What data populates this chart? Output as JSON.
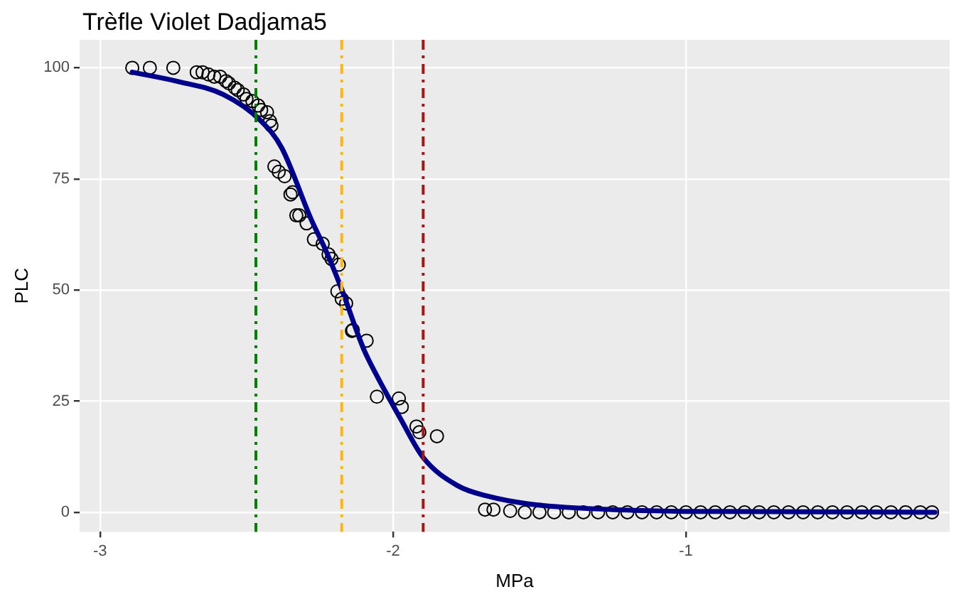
{
  "chart_data": {
    "type": "scatter",
    "title": "Trèfle Violet Dadjama5",
    "xlabel": "MPa",
    "ylabel": "PLC",
    "xlim": [
      -3.07,
      -0.1
    ],
    "xticks": [
      -3,
      -2,
      -1
    ],
    "ylim": [
      -4.4,
      106.3
    ],
    "yticks": [
      0,
      25,
      50,
      75,
      100
    ],
    "grid": true,
    "legend": false,
    "series": [
      {
        "marker": "circle",
        "color": "#000000",
        "x": [
          -2.89,
          -2.83,
          -2.75,
          -2.67,
          -2.65,
          -2.63,
          -2.61,
          -2.59,
          -2.57,
          -2.56,
          -2.54,
          -2.53,
          -2.51,
          -2.5,
          -2.48,
          -2.46,
          -2.45,
          -2.43,
          -2.42,
          -2.415,
          -2.405,
          -2.39,
          -2.37,
          -2.35,
          -2.343,
          -2.33,
          -2.32,
          -2.295,
          -2.27,
          -2.24,
          -2.22,
          -2.21,
          -2.185,
          -2.19,
          -2.175,
          -2.16,
          -2.14,
          -2.137,
          -2.09,
          -2.055,
          -1.98,
          -1.97,
          -1.92,
          -1.91,
          -1.85,
          -1.686,
          -1.657,
          -1.6,
          -1.55,
          -1.5,
          -1.45,
          -1.4,
          -1.35,
          -1.3,
          -1.25,
          -1.2,
          -1.15,
          -1.1,
          -1.05,
          -1.0,
          -0.95,
          -0.9,
          -0.85,
          -0.8,
          -0.75,
          -0.7,
          -0.65,
          -0.6,
          -0.55,
          -0.5,
          -0.45,
          -0.4,
          -0.35,
          -0.3,
          -0.25,
          -0.2,
          -0.16
        ],
        "values": [
          100,
          100,
          100,
          99,
          99,
          98.5,
          98,
          98,
          97,
          96.5,
          95.5,
          95,
          94,
          93,
          92.5,
          91.5,
          90.5,
          90,
          88,
          87,
          77.8,
          76.6,
          75.6,
          71.5,
          72,
          66.8,
          66.8,
          65,
          61.4,
          60.4,
          58,
          57,
          55.7,
          49.7,
          48,
          47,
          40.8,
          41,
          38.6,
          26,
          25.6,
          23.7,
          19.3,
          18,
          17.1,
          0.6,
          0.6,
          0.3,
          0,
          0,
          0,
          0,
          0,
          0,
          0,
          0,
          0,
          0,
          0,
          0,
          0,
          0,
          0,
          0,
          0,
          0,
          0,
          0,
          0,
          0,
          0,
          0,
          0,
          0,
          0,
          0,
          0
        ]
      },
      {
        "type": "line",
        "marker": "none",
        "line_style": "solid",
        "color": "#00008b",
        "x": [
          -2.89,
          -2.74,
          -2.58,
          -2.45,
          -2.38,
          -2.28,
          -2.23,
          -2.18,
          -2.1,
          -2.055,
          -1.974,
          -1.897,
          -1.78,
          -1.67,
          -1.54,
          -1.38,
          -1.0,
          -0.15
        ],
        "values": [
          99,
          97,
          94,
          88,
          82,
          66,
          59,
          51,
          36.7,
          30.7,
          21,
          12.3,
          6,
          3.5,
          1.9,
          1,
          0.2,
          0
        ]
      }
    ],
    "ref_lines": [
      {
        "axis": "x",
        "value": -2.468,
        "color": "#007a00",
        "line_style": "dashed"
      },
      {
        "axis": "x",
        "value": -2.175,
        "color": "#f5b820",
        "line_style": "dashed"
      },
      {
        "axis": "x",
        "value": -1.897,
        "color": "#9b1b1b",
        "line_style": "dashed"
      }
    ]
  }
}
